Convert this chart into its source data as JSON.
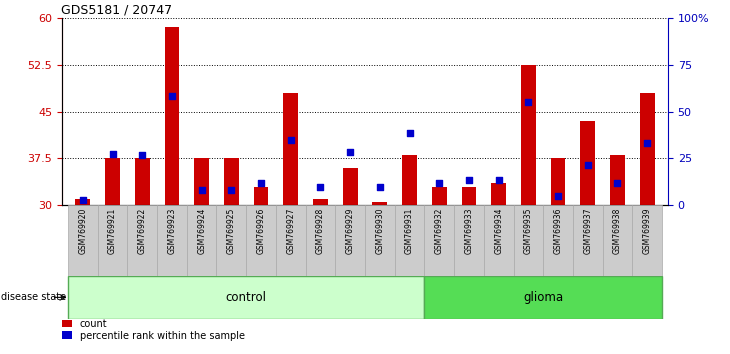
{
  "title": "GDS5181 / 20747",
  "samples": [
    "GSM769920",
    "GSM769921",
    "GSM769922",
    "GSM769923",
    "GSM769924",
    "GSM769925",
    "GSM769926",
    "GSM769927",
    "GSM769928",
    "GSM769929",
    "GSM769930",
    "GSM769931",
    "GSM769932",
    "GSM769933",
    "GSM769934",
    "GSM769935",
    "GSM769936",
    "GSM769937",
    "GSM769938",
    "GSM769939"
  ],
  "red_bar_tops": [
    31.0,
    37.5,
    37.5,
    58.5,
    37.5,
    37.5,
    33.0,
    48.0,
    31.0,
    36.0,
    30.5,
    38.0,
    33.0,
    33.0,
    33.5,
    52.5,
    37.5,
    43.5,
    38.0,
    48.0
  ],
  "blue_dot_values": [
    30.8,
    38.2,
    38.0,
    47.5,
    32.5,
    32.5,
    33.5,
    40.5,
    33.0,
    38.5,
    33.0,
    41.5,
    33.5,
    34.0,
    34.0,
    46.5,
    31.5,
    36.5,
    33.5,
    40.0
  ],
  "ymin": 30,
  "ymax": 60,
  "yticks_left": [
    30,
    37.5,
    45,
    52.5,
    60
  ],
  "yticks_right": [
    0,
    25,
    50,
    75,
    100
  ],
  "bar_baseline": 30,
  "control_count": 12,
  "glioma_count": 8,
  "bar_color": "#cc0000",
  "dot_color": "#0000cc",
  "control_bg": "#ccffcc",
  "glioma_bg": "#55dd55",
  "left_axis_color": "#cc0000",
  "right_axis_color": "#0000bb",
  "bar_width": 0.5,
  "dot_size": 18,
  "label_bg": "#cccccc",
  "label_edge": "#aaaaaa"
}
